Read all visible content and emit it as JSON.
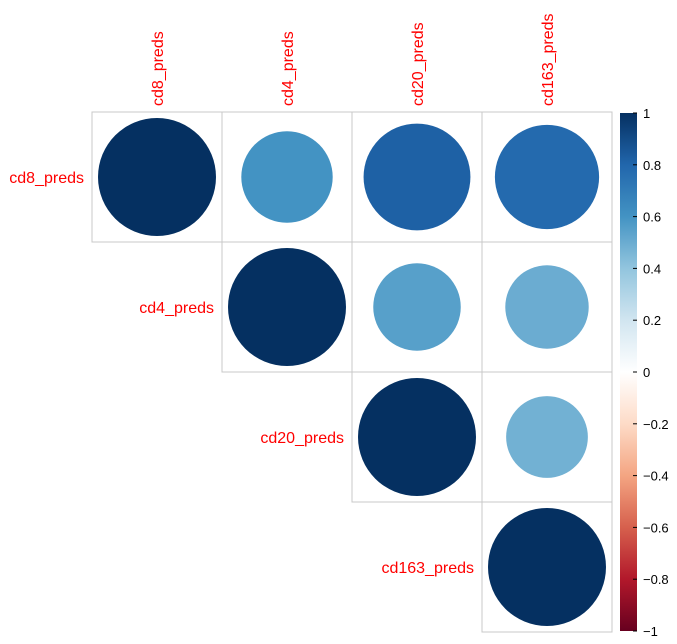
{
  "chart_data": {
    "type": "heatmap",
    "style": "corrplot-upper-circle",
    "variables": [
      "cd8_preds",
      "cd4_preds",
      "cd20_preds",
      "cd163_preds"
    ],
    "matrix": [
      [
        1.0,
        0.6,
        0.82,
        0.78
      ],
      [
        0.6,
        1.0,
        0.55,
        0.5
      ],
      [
        0.82,
        0.55,
        1.0,
        0.48
      ],
      [
        0.78,
        0.5,
        0.48,
        1.0
      ]
    ],
    "label_color": "#ff0000",
    "grid_color": "#c8c8c8",
    "legend": {
      "placement": "right",
      "range": [
        -1,
        1
      ],
      "tick_labels": [
        "1",
        "0.8",
        "0.6",
        "0.4",
        "0.2",
        "0",
        "−0.2",
        "−0.4",
        "−0.6",
        "−0.8",
        "−1"
      ],
      "tick_values": [
        1,
        0.8,
        0.6,
        0.4,
        0.2,
        0,
        -0.2,
        -0.4,
        -0.6,
        -0.8,
        -1
      ],
      "colors": [
        "#67001f",
        "#b2182b",
        "#d6604d",
        "#f4a582",
        "#fddbc7",
        "#ffffff",
        "#d1e5f0",
        "#92c5de",
        "#4393c3",
        "#2166ac",
        "#053061"
      ]
    }
  }
}
